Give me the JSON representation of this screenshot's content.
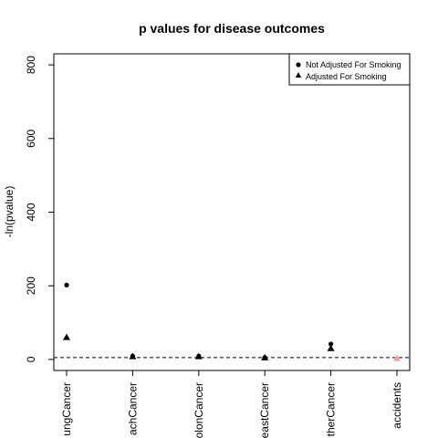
{
  "chart_data": {
    "type": "scatter",
    "title": "p values for disease outcomes",
    "xlabel": "",
    "ylabel": "-ln(pvalue)",
    "ylim": [
      -30,
      830
    ],
    "yticks": [
      0,
      200,
      400,
      600,
      800
    ],
    "categories": [
      "LungCancer",
      "StomachCancer",
      "ColonCancer",
      "BreastCancer",
      "OtherCancer",
      "accidents"
    ],
    "category_labels_visible": [
      "ungCancer",
      "achCancer",
      "olonCancer",
      "eastCancer",
      "therCancer",
      "accidents"
    ],
    "series": [
      {
        "name": "Not Adjusted For Smoking",
        "marker": "circle",
        "values": [
          202,
          9,
          9,
          5,
          42,
          3
        ],
        "colors": [
          "#000000",
          "#000000",
          "#000000",
          "#000000",
          "#000000",
          "#f0a0a0"
        ]
      },
      {
        "name": "Adjusted For Smoking",
        "marker": "triangle",
        "values": [
          60,
          8,
          8,
          5,
          30,
          3
        ],
        "colors": [
          "#000000",
          "#000000",
          "#000000",
          "#000000",
          "#000000",
          "#f0a0a0"
        ]
      }
    ],
    "reference_line": {
      "y": 5,
      "style": "dashed"
    },
    "legend_position": "top-right",
    "grid": false
  }
}
